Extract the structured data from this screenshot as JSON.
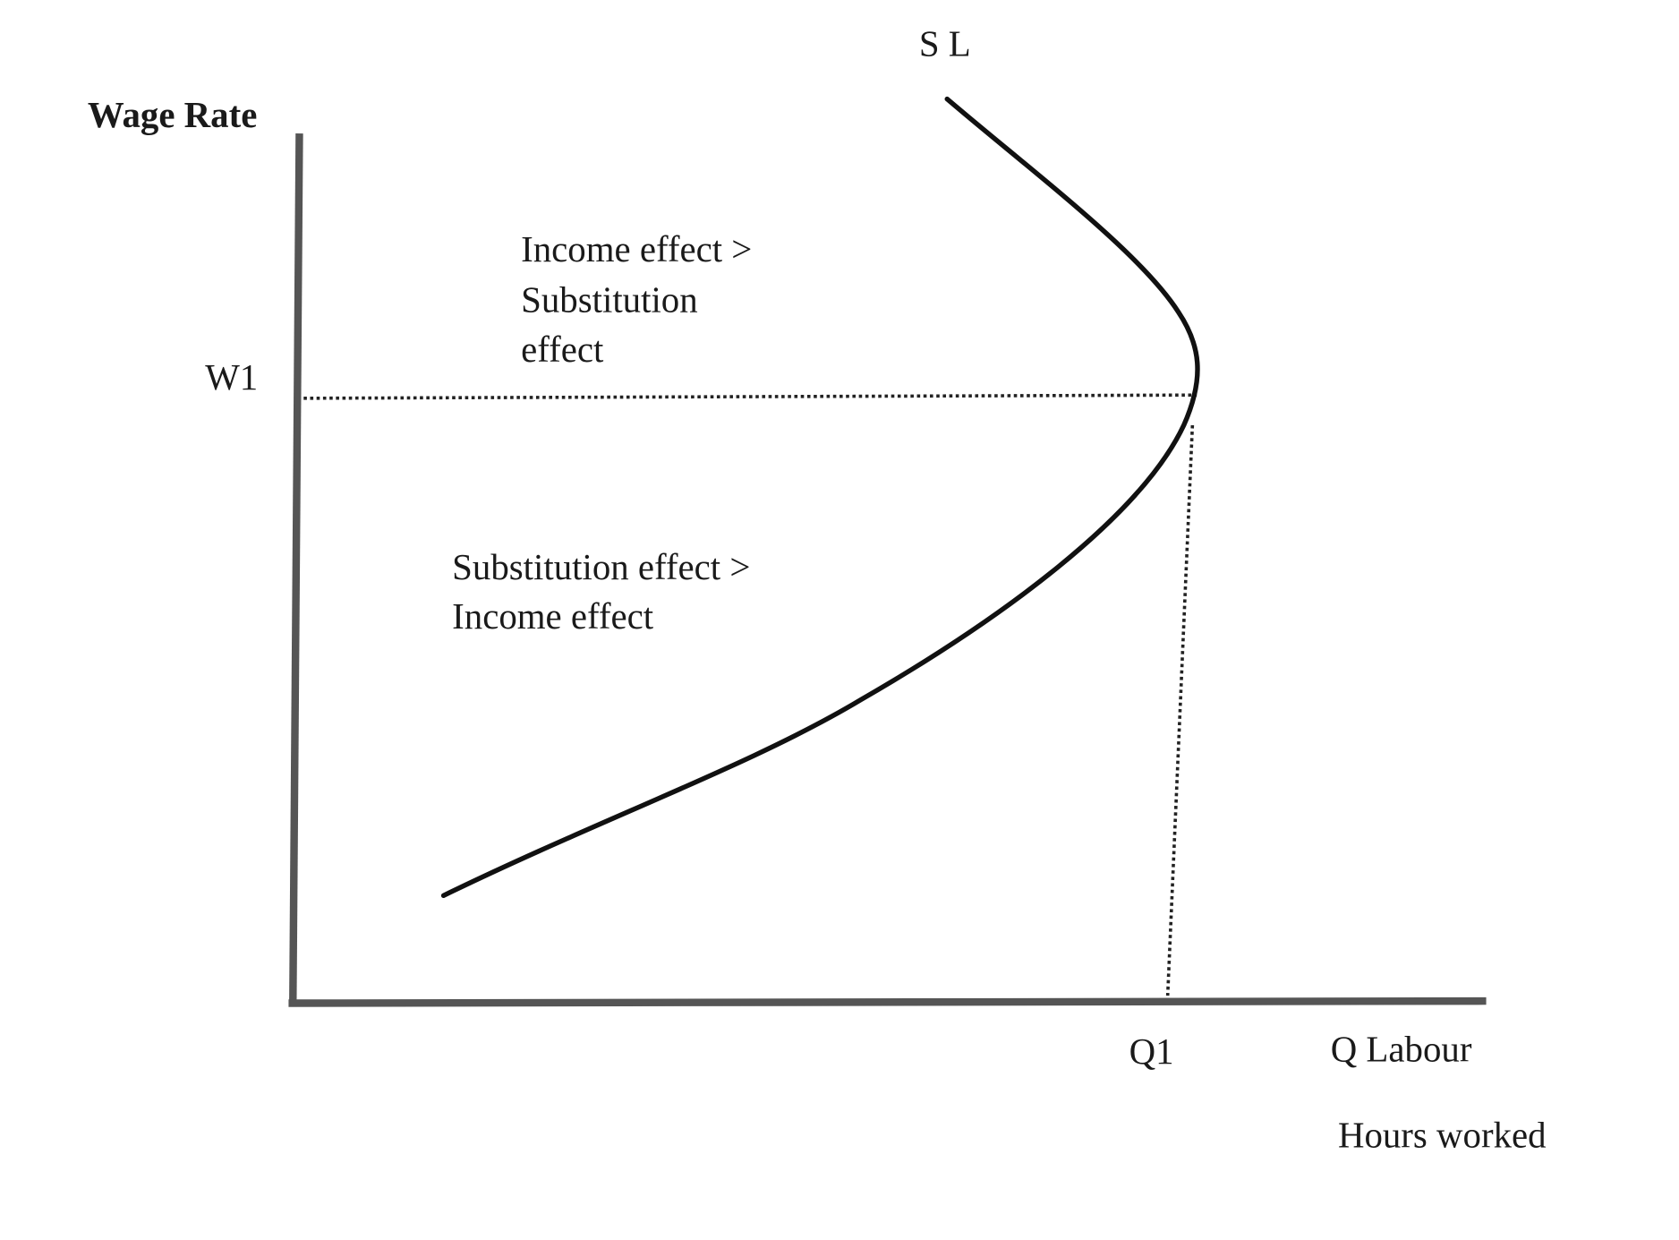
{
  "axes": {
    "y_label": "Wage Rate",
    "x_label": "Q Labour",
    "x_sublabel": "Hours worked"
  },
  "curve_label": "S L",
  "marks": {
    "w1": "W1",
    "q1": "Q1"
  },
  "regions": [
    {
      "lines": [
        "Income effect >",
        "Substitution",
        "effect"
      ]
    },
    {
      "lines": [
        "Substitution effect >",
        "Income effect"
      ]
    }
  ]
}
